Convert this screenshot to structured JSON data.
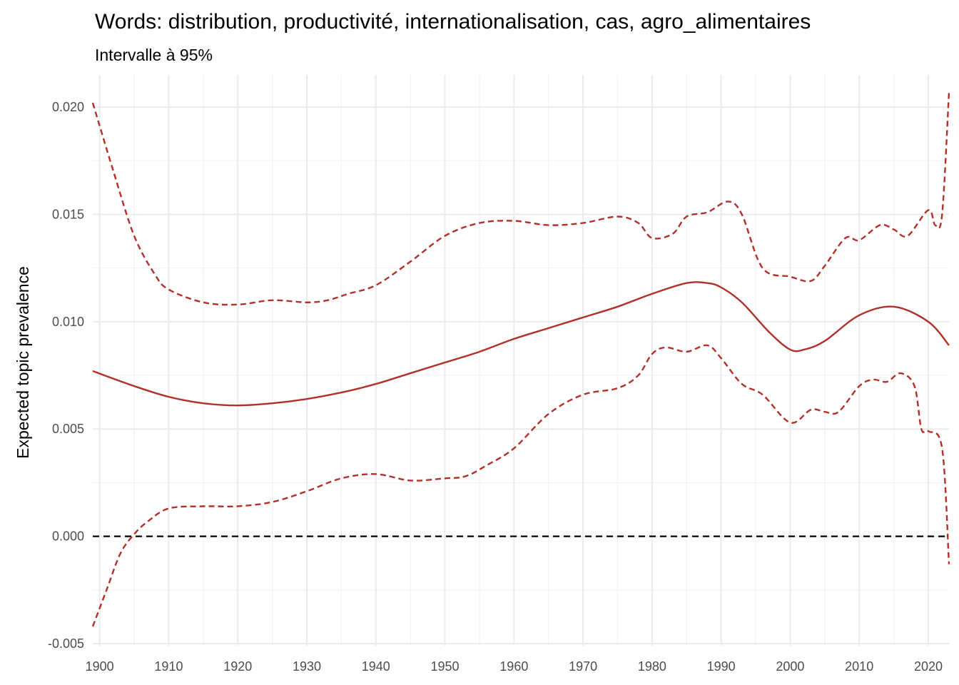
{
  "chart_data": {
    "type": "line",
    "title": "Words: distribution, productivité, internationalisation, cas, agro_alimentaires",
    "subtitle": "Intervalle à 95%",
    "xlabel": "",
    "ylabel": "Expected topic prevalence",
    "xlim": [
      1899,
      2023
    ],
    "ylim": [
      -0.0051,
      0.0215
    ],
    "x_ticks": [
      1900,
      1910,
      1920,
      1930,
      1940,
      1950,
      1960,
      1970,
      1980,
      1990,
      2000,
      2010,
      2020
    ],
    "x_tick_labels": [
      "1900",
      "1910",
      "1920",
      "1930",
      "1940",
      "1950",
      "1960",
      "1970",
      "1980",
      "1990",
      "2000",
      "2010",
      "2020"
    ],
    "y_ticks": [
      -0.005,
      0.0,
      0.005,
      0.01,
      0.015,
      0.02
    ],
    "y_tick_labels": [
      "-0.005",
      "0.000",
      "0.005",
      "0.010",
      "0.015",
      "0.020"
    ],
    "grid": true,
    "colors": {
      "series": "#b2302a",
      "reference": "#000000",
      "grid_major": "#ebebeb",
      "grid_minor": "#f2f2f2",
      "tick_text": "#4d4d4d"
    },
    "reference_line": {
      "y": 0.0,
      "style": "dashed"
    },
    "series": [
      {
        "role": "estimate",
        "style": "solid",
        "x": [
          1899,
          1905,
          1910,
          1915,
          1920,
          1925,
          1930,
          1935,
          1940,
          1945,
          1950,
          1955,
          1960,
          1965,
          1970,
          1975,
          1980,
          1985,
          1988,
          1990,
          1993,
          1997,
          2000,
          2002,
          2005,
          2010,
          2015,
          2020,
          2023
        ],
        "y": [
          0.0077,
          0.007,
          0.0065,
          0.0062,
          0.0061,
          0.0062,
          0.0064,
          0.0067,
          0.0071,
          0.0076,
          0.0081,
          0.0086,
          0.0092,
          0.0097,
          0.0102,
          0.0107,
          0.0113,
          0.0118,
          0.0118,
          0.0116,
          0.0109,
          0.0095,
          0.0087,
          0.0087,
          0.0091,
          0.0103,
          0.0107,
          0.01,
          0.0089
        ]
      },
      {
        "role": "upper_95",
        "style": "dashed",
        "x": [
          1899,
          1902,
          1905,
          1908,
          1910,
          1915,
          1920,
          1925,
          1930,
          1933,
          1936,
          1940,
          1945,
          1950,
          1955,
          1960,
          1965,
          1970,
          1975,
          1978,
          1980,
          1983,
          1985,
          1988,
          1991,
          1993,
          1996,
          2000,
          2003,
          2005,
          2008,
          2010,
          2013,
          2015,
          2017,
          2020,
          2021,
          2022,
          2023
        ],
        "y": [
          0.0202,
          0.017,
          0.014,
          0.0122,
          0.0115,
          0.0109,
          0.0108,
          0.011,
          0.0109,
          0.011,
          0.0113,
          0.0117,
          0.0128,
          0.014,
          0.0146,
          0.0147,
          0.0145,
          0.0146,
          0.0149,
          0.0146,
          0.0139,
          0.0141,
          0.0149,
          0.0151,
          0.0156,
          0.015,
          0.0125,
          0.0121,
          0.0119,
          0.0126,
          0.0139,
          0.0138,
          0.0145,
          0.0143,
          0.014,
          0.0152,
          0.0145,
          0.015,
          0.0207
        ]
      },
      {
        "role": "lower_95",
        "style": "dashed",
        "x": [
          1899,
          1901,
          1903,
          1905,
          1907,
          1910,
          1915,
          1920,
          1925,
          1930,
          1935,
          1940,
          1945,
          1950,
          1953,
          1956,
          1960,
          1965,
          1970,
          1975,
          1978,
          1980,
          1982,
          1985,
          1988,
          1990,
          1993,
          1996,
          2000,
          2003,
          2005,
          2007,
          2010,
          2012,
          2014,
          2016,
          2018,
          2019,
          2020,
          2022,
          2023
        ],
        "y": [
          -0.0042,
          -0.0025,
          -0.0008,
          0.0001,
          0.0007,
          0.0013,
          0.0014,
          0.0014,
          0.0016,
          0.0021,
          0.0027,
          0.0029,
          0.0026,
          0.0027,
          0.0028,
          0.0033,
          0.0041,
          0.0057,
          0.0066,
          0.0069,
          0.0075,
          0.0085,
          0.0088,
          0.0086,
          0.0089,
          0.0083,
          0.0071,
          0.0066,
          0.0053,
          0.0059,
          0.0058,
          0.0058,
          0.007,
          0.0073,
          0.0072,
          0.0076,
          0.007,
          0.005,
          0.0049,
          0.0041,
          -0.0013
        ]
      }
    ]
  }
}
